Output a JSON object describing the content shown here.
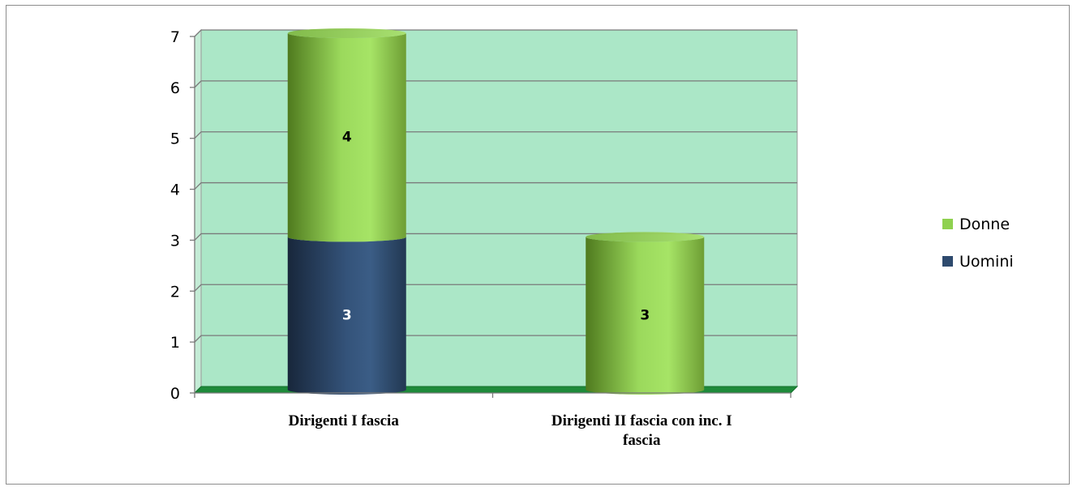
{
  "chart_data": {
    "type": "bar",
    "stacked": true,
    "categories": [
      "Dirigenti I fascia",
      "Dirigenti II fascia con inc. I fascia"
    ],
    "category_lines": [
      [
        "Dirigenti I fascia"
      ],
      [
        "Dirigenti II fascia con inc. I",
        "fascia"
      ]
    ],
    "series": [
      {
        "name": "Uomini",
        "values": [
          3,
          0
        ],
        "color": "#2e4a6e"
      },
      {
        "name": "Donne",
        "values": [
          4,
          3
        ],
        "color": "#8fd14f"
      }
    ],
    "ylim": [
      0,
      7
    ],
    "yticks": [
      0,
      1,
      2,
      3,
      4,
      5,
      6,
      7
    ],
    "grid": true,
    "legend_position": "right",
    "legend_order": [
      "Donne",
      "Uomini"
    ],
    "plot_background": "#abe7c7",
    "floor_color": "#1e8a3a"
  }
}
